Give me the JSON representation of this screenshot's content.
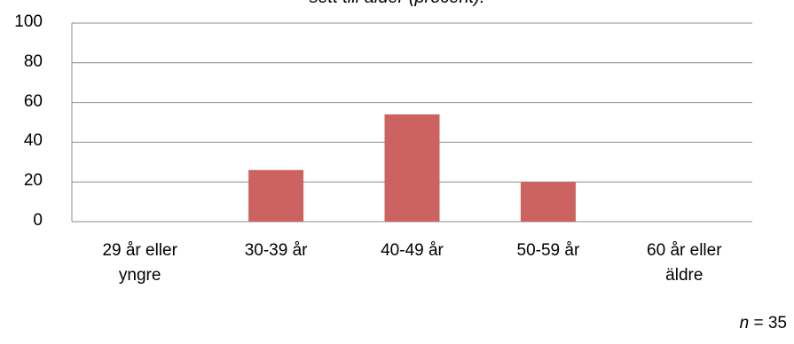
{
  "chart_data": {
    "type": "bar",
    "title": "sett till ålder (procent).",
    "categories": [
      [
        "29 år eller",
        "yngre"
      ],
      [
        "30-39 år"
      ],
      [
        "40-49 år"
      ],
      [
        "50-59 år"
      ],
      [
        "60 år eller",
        "äldre"
      ]
    ],
    "values": [
      0,
      26,
      54,
      20,
      0
    ],
    "ylim": [
      0,
      100
    ],
    "yticks": [
      "0",
      "20",
      "40",
      "60",
      "80",
      "100"
    ],
    "xlabel": "",
    "ylabel": "",
    "grid": true,
    "colors": {
      "bar": "#cd6360",
      "grid": "#8c8c8c",
      "axis": "#8c8c8c"
    }
  },
  "note": {
    "n_label": "n",
    "n_value": "= 35"
  }
}
